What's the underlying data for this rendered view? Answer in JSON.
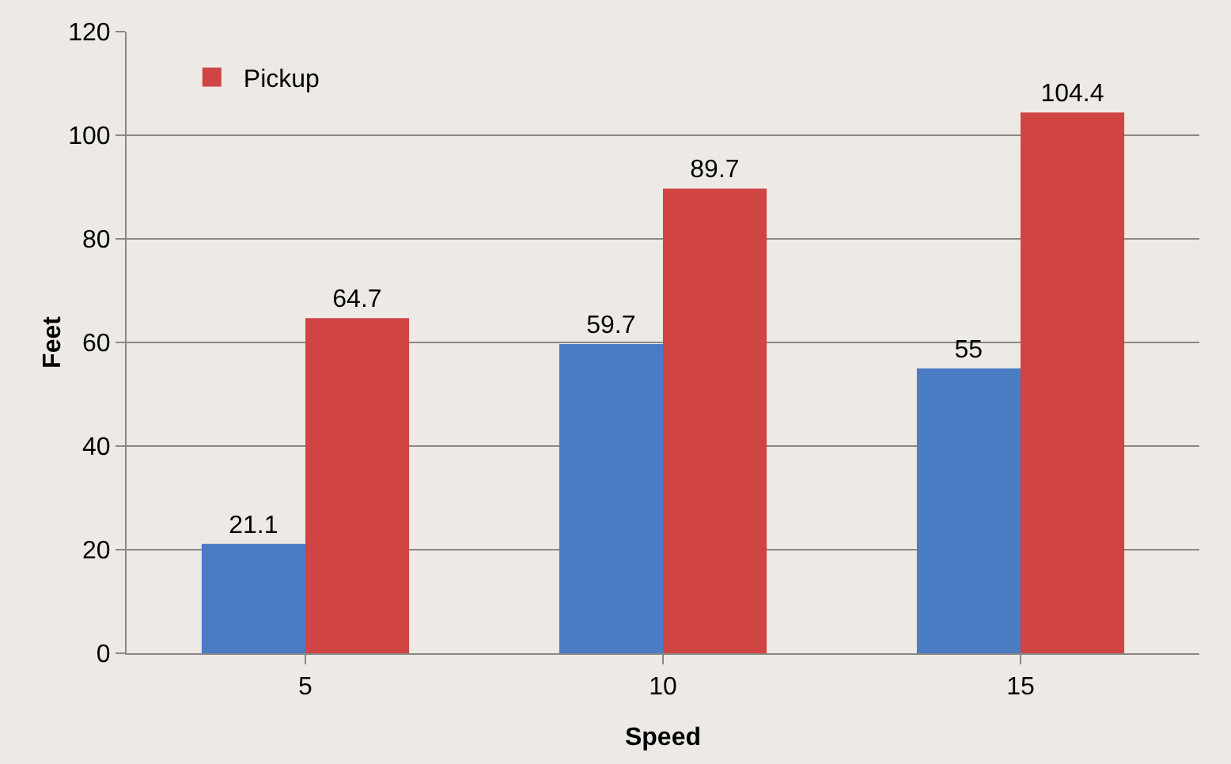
{
  "chart_data": {
    "type": "bar",
    "xlabel": "Speed",
    "ylabel": "Feet",
    "categories": [
      "5",
      "10",
      "15"
    ],
    "series": [
      {
        "color": "#4a7cc4",
        "values": [
          21.1,
          59.7,
          55
        ]
      },
      {
        "name": "Pickup",
        "color": "#d04444",
        "values": [
          64.7,
          89.7,
          104.4
        ]
      }
    ],
    "ylim": [
      0,
      120
    ],
    "yticks": [
      0,
      20,
      40,
      60,
      80,
      100,
      120
    ],
    "grid": "y",
    "legend": "top left",
    "data_labels": true
  }
}
